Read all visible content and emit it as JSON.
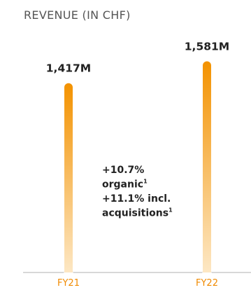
{
  "chart_data": {
    "type": "bar",
    "title": "REVENUE (IN CHF)",
    "categories": [
      "FY21",
      "FY22"
    ],
    "values": [
      1417,
      1581
    ],
    "value_labels": [
      "1,417M",
      "1,581M"
    ],
    "ylim": [
      0,
      1620
    ],
    "grid": false,
    "legend": "none",
    "annotation": {
      "lines": [
        {
          "text": "+10.7%",
          "sup": ""
        },
        {
          "text": "organic",
          "sup": "1"
        },
        {
          "text": "+11.1% incl.",
          "sup": ""
        },
        {
          "text": "acquisitions",
          "sup": "1"
        }
      ]
    },
    "colors": {
      "bar_top": "#f39200",
      "bar_bottom": "#fde9c8",
      "axis": "#cccccc",
      "category_text": "#f08a00"
    }
  }
}
